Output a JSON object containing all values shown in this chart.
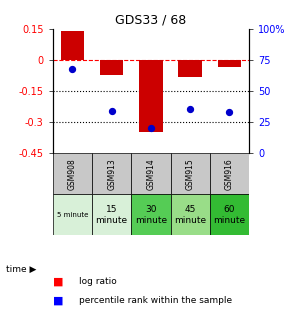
{
  "title": "GDS33 / 68",
  "samples": [
    "GSM908",
    "GSM913",
    "GSM914",
    "GSM915",
    "GSM916"
  ],
  "time_labels": [
    "5 minute",
    "15\nminute",
    "30\nminute",
    "45\nminute",
    "60\nminute"
  ],
  "log_ratio": [
    0.14,
    -0.07,
    -0.35,
    -0.08,
    -0.03
  ],
  "percentile_rank": [
    68,
    34,
    20,
    36,
    33
  ],
  "bar_color": "#cc0000",
  "dot_color": "#0000cc",
  "ylim_left": [
    -0.45,
    0.15
  ],
  "ylim_right": [
    0,
    100
  ],
  "yticks_left": [
    0.15,
    0,
    -0.15,
    -0.3,
    -0.45
  ],
  "yticks_right": [
    100,
    75,
    50,
    25,
    0
  ],
  "bar_width": 0.6,
  "row1_color": "#c8c8c8",
  "row2_colors": [
    "#d8f0d8",
    "#d8f0d8",
    "#55cc55",
    "#99dd88",
    "#33bb33"
  ],
  "dotted_line_y": [
    -0.15,
    -0.3
  ],
  "zero_line_y": 0
}
